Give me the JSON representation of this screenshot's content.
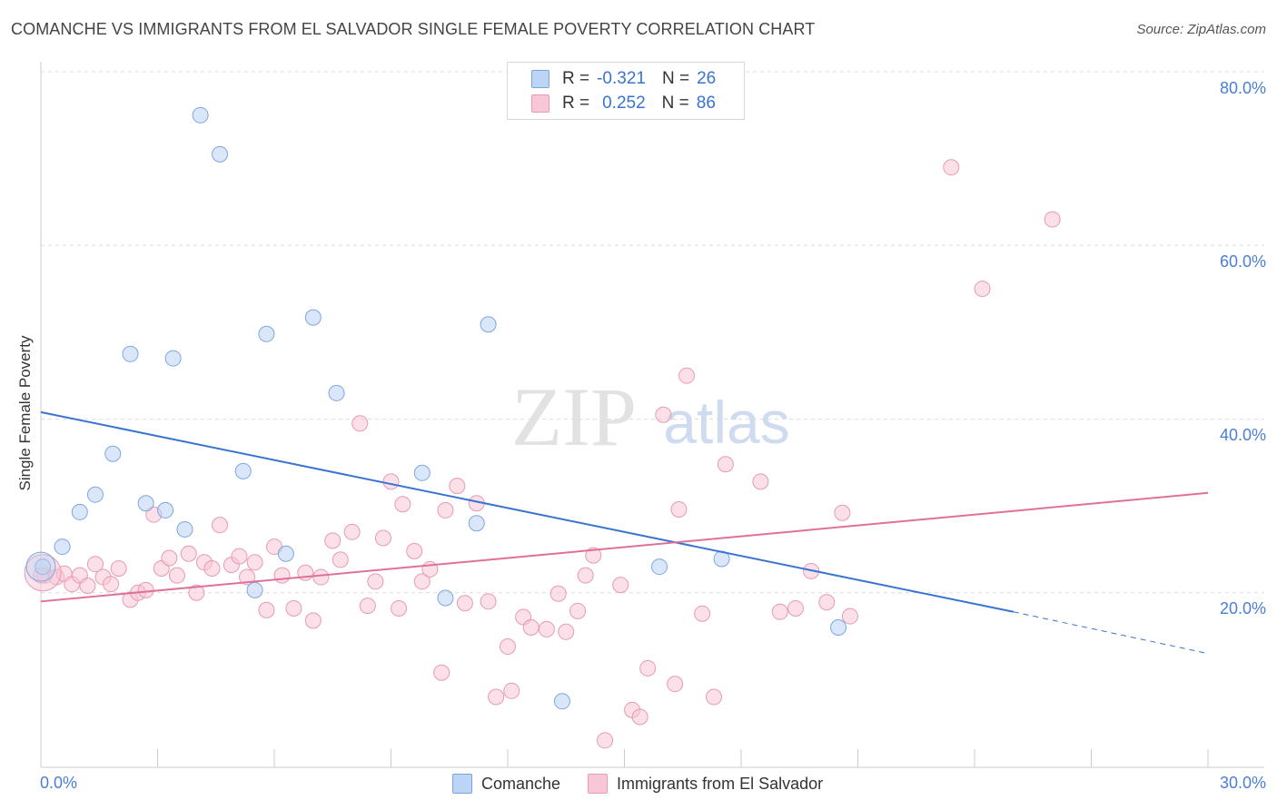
{
  "title": "COMANCHE VS IMMIGRANTS FROM EL SALVADOR SINGLE FEMALE POVERTY CORRELATION CHART",
  "source": "Source: ZipAtlas.com",
  "watermark": {
    "zip": "ZIP",
    "atlas": "atlas"
  },
  "colors": {
    "blue": "#3a74d0",
    "blue_fill": "#bcd4f5",
    "pink": "#e0709a",
    "pink_fill": "#f8c6d6",
    "tick": "#4a7fd4"
  },
  "legend_top": [
    {
      "r_label": "R =",
      "r_value": "-0.321",
      "n_label": "N =",
      "n_value": "26"
    },
    {
      "r_label": "R =",
      "r_value": "0.252",
      "n_label": "N =",
      "n_value": "86"
    }
  ],
  "legend_bottom": [
    "Comanche",
    "Immigrants from El Salvador"
  ],
  "chart_data": {
    "type": "scatter",
    "ylabel": "Single Female Poverty",
    "xlabel": "",
    "xlim": [
      0,
      30
    ],
    "ylim": [
      0,
      82
    ],
    "y_ticks": [
      20,
      40,
      60,
      80
    ],
    "y_tick_labels": [
      "20.0%",
      "40.0%",
      "60.0%",
      "80.0%"
    ],
    "x_tick_labels": [
      "0.0%",
      "30.0%"
    ],
    "grid": "horizontal dashed",
    "series": [
      {
        "name": "Comanche",
        "r": -0.321,
        "n": 26,
        "trend": {
          "x0": 0,
          "y0": 40.8,
          "x1": 25,
          "y1": 17.8,
          "dashed_to_x": 30,
          "dashed_to_y": 13.0
        },
        "points": [
          [
            0.05,
            23.0
          ],
          [
            0.55,
            25.3
          ],
          [
            1.0,
            29.3
          ],
          [
            1.4,
            31.3
          ],
          [
            1.85,
            36.0
          ],
          [
            2.3,
            47.5
          ],
          [
            2.7,
            30.3
          ],
          [
            3.2,
            29.5
          ],
          [
            3.4,
            47.0
          ],
          [
            3.7,
            27.3
          ],
          [
            4.1,
            75.0
          ],
          [
            4.6,
            70.5
          ],
          [
            5.2,
            34.0
          ],
          [
            5.5,
            20.3
          ],
          [
            5.8,
            49.8
          ],
          [
            6.3,
            24.5
          ],
          [
            7.0,
            51.7
          ],
          [
            7.6,
            43.0
          ],
          [
            9.8,
            33.8
          ],
          [
            10.4,
            19.4
          ],
          [
            11.2,
            28.0
          ],
          [
            11.5,
            50.9
          ],
          [
            13.4,
            7.5
          ],
          [
            15.9,
            23.0
          ],
          [
            17.5,
            23.9
          ],
          [
            20.5,
            16.0
          ]
        ]
      },
      {
        "name": "Immigrants from El Salvador",
        "r": 0.252,
        "n": 86,
        "trend": {
          "x0": 0,
          "y0": 19.0,
          "x1": 30,
          "y1": 31.5
        },
        "points": [
          [
            0.1,
            22.0
          ],
          [
            0.4,
            21.8
          ],
          [
            0.6,
            22.2
          ],
          [
            0.8,
            21.0
          ],
          [
            1.0,
            22.0
          ],
          [
            1.2,
            20.8
          ],
          [
            1.4,
            23.3
          ],
          [
            1.6,
            21.8
          ],
          [
            1.8,
            21.0
          ],
          [
            2.0,
            22.8
          ],
          [
            2.3,
            19.2
          ],
          [
            2.5,
            20.0
          ],
          [
            2.7,
            20.3
          ],
          [
            2.9,
            29.0
          ],
          [
            3.1,
            22.8
          ],
          [
            3.3,
            24.0
          ],
          [
            3.5,
            22.0
          ],
          [
            3.8,
            24.5
          ],
          [
            4.0,
            20.0
          ],
          [
            4.2,
            23.5
          ],
          [
            4.4,
            22.8
          ],
          [
            4.6,
            27.8
          ],
          [
            4.9,
            23.2
          ],
          [
            5.1,
            24.2
          ],
          [
            5.3,
            21.8
          ],
          [
            5.5,
            23.5
          ],
          [
            5.8,
            18.0
          ],
          [
            6.0,
            25.3
          ],
          [
            6.2,
            22.0
          ],
          [
            6.5,
            18.2
          ],
          [
            6.8,
            22.3
          ],
          [
            7.0,
            16.8
          ],
          [
            7.2,
            21.8
          ],
          [
            7.5,
            26.0
          ],
          [
            7.7,
            23.8
          ],
          [
            8.0,
            27.0
          ],
          [
            8.2,
            39.5
          ],
          [
            8.4,
            18.5
          ],
          [
            8.6,
            21.3
          ],
          [
            8.8,
            26.3
          ],
          [
            9.0,
            32.8
          ],
          [
            9.2,
            18.2
          ],
          [
            9.3,
            30.2
          ],
          [
            9.6,
            24.8
          ],
          [
            9.8,
            21.3
          ],
          [
            10.0,
            22.7
          ],
          [
            10.3,
            10.8
          ],
          [
            10.4,
            29.5
          ],
          [
            10.7,
            32.3
          ],
          [
            10.9,
            18.8
          ],
          [
            11.2,
            30.3
          ],
          [
            11.5,
            19.0
          ],
          [
            11.7,
            8.0
          ],
          [
            12.0,
            13.8
          ],
          [
            12.1,
            8.7
          ],
          [
            12.4,
            17.2
          ],
          [
            12.6,
            16.0
          ],
          [
            13.0,
            15.8
          ],
          [
            13.3,
            19.9
          ],
          [
            13.5,
            15.5
          ],
          [
            13.8,
            17.9
          ],
          [
            14.0,
            22.0
          ],
          [
            14.2,
            24.3
          ],
          [
            14.5,
            3.0
          ],
          [
            14.9,
            20.9
          ],
          [
            15.2,
            6.5
          ],
          [
            15.4,
            5.7
          ],
          [
            15.6,
            11.3
          ],
          [
            16.0,
            40.5
          ],
          [
            16.3,
            9.5
          ],
          [
            16.4,
            29.6
          ],
          [
            16.6,
            45.0
          ],
          [
            17.0,
            17.6
          ],
          [
            17.3,
            8.0
          ],
          [
            17.6,
            34.8
          ],
          [
            18.5,
            32.8
          ],
          [
            19.0,
            17.8
          ],
          [
            19.4,
            18.2
          ],
          [
            19.8,
            22.5
          ],
          [
            20.2,
            18.9
          ],
          [
            20.6,
            29.2
          ],
          [
            20.8,
            17.3
          ],
          [
            23.4,
            69.0
          ],
          [
            24.2,
            55.0
          ],
          [
            26.0,
            63.0
          ],
          [
            0.0,
            22.0
          ]
        ]
      }
    ]
  }
}
